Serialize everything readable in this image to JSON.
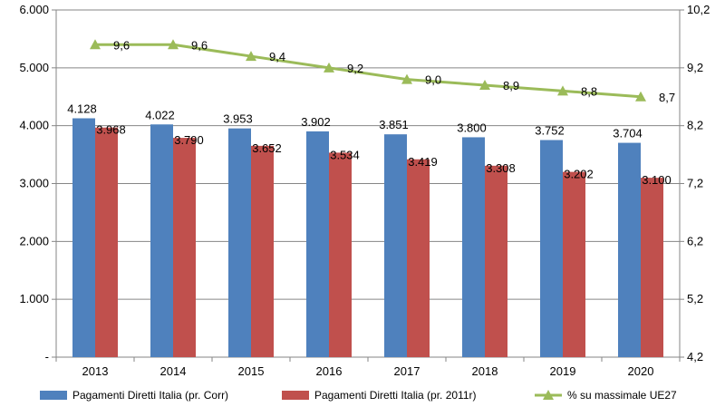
{
  "chart_data": {
    "type": "bar",
    "categories": [
      "2013",
      "2014",
      "2015",
      "2016",
      "2017",
      "2018",
      "2019",
      "2020"
    ],
    "series": [
      {
        "name": "Pagamenti  Diretti Italia  (pr. Corr)",
        "kind": "bar",
        "axis": "left",
        "color": "#4F81BD",
        "values": [
          4128,
          4022,
          3953,
          3902,
          3851,
          3800,
          3752,
          3704
        ],
        "labels": [
          "4.128",
          "4.022",
          "3.953",
          "3.902",
          "3.851",
          "3.800",
          "3.752",
          "3.704"
        ]
      },
      {
        "name": "Pagamenti  Diretti Italia  (pr. 2011r)",
        "kind": "bar",
        "axis": "left",
        "color": "#C0504D",
        "values": [
          3968,
          3790,
          3652,
          3534,
          3419,
          3308,
          3202,
          3100
        ],
        "labels": [
          "3.968",
          "3.790",
          "3.652",
          "3.534",
          "3.419",
          "3.308",
          "3.202",
          "3.100"
        ]
      },
      {
        "name": "% su massimale  UE27",
        "kind": "line",
        "axis": "right",
        "color": "#9BBB59",
        "values": [
          9.6,
          9.6,
          9.4,
          9.2,
          9.0,
          8.9,
          8.8,
          8.7
        ],
        "labels": [
          "9,6",
          "9,6",
          "9,4",
          "9,2",
          "9,0",
          "8,9",
          "8,8",
          "8,7"
        ]
      }
    ],
    "y_left": {
      "ylim": [
        0,
        6000
      ],
      "ticks": [
        0,
        1000,
        2000,
        3000,
        4000,
        5000,
        6000
      ],
      "tick_labels": [
        "-",
        "1.000",
        "2.000",
        "3.000",
        "4.000",
        "5.000",
        "6.000"
      ]
    },
    "y_right": {
      "ylim": [
        4.2,
        10.2
      ],
      "ticks": [
        4.2,
        5.2,
        6.2,
        7.2,
        8.2,
        9.2,
        10.2
      ],
      "tick_labels": [
        "4,2",
        "5,2",
        "6,2",
        "7,2",
        "8,2",
        "9,2",
        "10,2"
      ]
    },
    "grid": "horizontal",
    "legend_position": "bottom"
  }
}
